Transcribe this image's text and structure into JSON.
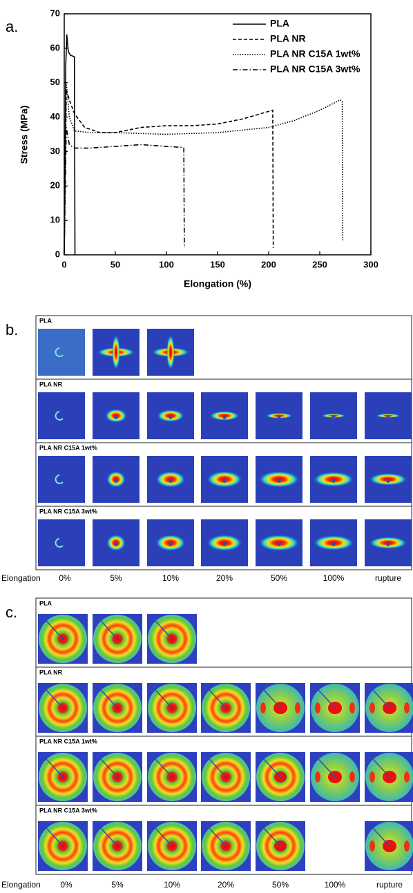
{
  "chart_data": {
    "type": "line",
    "panel_label": "a.",
    "x_label": "Elongation (%)",
    "y_label": "Stress (MPa)",
    "xlim": [
      0,
      300
    ],
    "xticks": [
      0,
      50,
      100,
      150,
      200,
      250,
      300
    ],
    "ylim": [
      0,
      70
    ],
    "yticks": [
      0,
      10,
      20,
      30,
      40,
      50,
      60,
      70
    ],
    "legend": "upper right",
    "grid": false,
    "series": [
      {
        "name": "PLA",
        "color": "#000000",
        "linestyle": "solid",
        "x": [
          0,
          1.5,
          2.5,
          4,
          6,
          10,
          10.5
        ],
        "values": [
          0,
          55,
          64,
          59,
          58,
          57.5,
          0
        ]
      },
      {
        "name": "PLA NR",
        "color": "#000000",
        "linestyle": "dashed",
        "x": [
          0,
          2,
          5,
          10,
          20,
          35,
          50,
          75,
          100,
          125,
          150,
          175,
          204,
          204.5
        ],
        "values": [
          0,
          48,
          45,
          41,
          37,
          35.5,
          35.5,
          37,
          37.5,
          37.5,
          38,
          39.5,
          42,
          2
        ]
      },
      {
        "name": "PLA NR C15A 1wt%",
        "color": "#000000",
        "linestyle": "dotted",
        "x": [
          0,
          2,
          5,
          10,
          25,
          50,
          100,
          150,
          200,
          225,
          250,
          270,
          272,
          272.5
        ],
        "values": [
          0,
          50,
          40,
          36,
          35.5,
          35.5,
          35,
          35.5,
          37,
          39,
          42,
          45,
          44.5,
          4
        ]
      },
      {
        "name": "PLA NR C15A 3wt%",
        "color": "#000000",
        "linestyle": "dashdot",
        "x": [
          0,
          2,
          5,
          10,
          25,
          50,
          75,
          100,
          116,
          117,
          117.5
        ],
        "values": [
          0,
          37,
          32,
          31,
          31,
          31.5,
          32,
          31.5,
          31.2,
          31,
          2
        ]
      }
    ]
  },
  "panels": {
    "b": {
      "label": "b.",
      "rows": [
        "PLA",
        "PLA NR",
        "PLA NR C15A 1wt%",
        "PLA NR C15A 3wt%"
      ],
      "axis_label": "Elongation",
      "columns": [
        "0%",
        "5%",
        "10%",
        "20%",
        "50%",
        "100%",
        "rupture"
      ]
    },
    "c": {
      "label": "c.",
      "rows": [
        "PLA",
        "PLA NR",
        "PLA NR C15A 1wt%",
        "PLA NR C15A 3wt%"
      ],
      "axis_label": "Elongation",
      "columns": [
        "0%",
        "5%",
        "10%",
        "20%",
        "50%",
        "100%",
        "rupture"
      ]
    }
  }
}
